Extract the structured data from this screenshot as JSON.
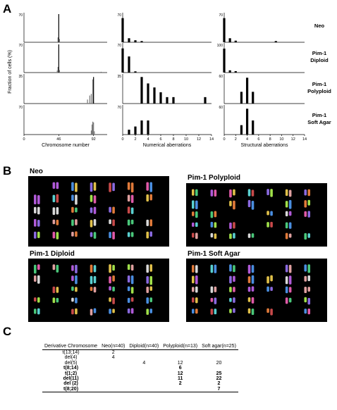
{
  "panel_a": {
    "letter": "A",
    "ylabel": "Fraction of cells (%)",
    "row_labels": [
      [
        "Neo"
      ],
      [
        "Pim-1",
        "Diploid"
      ],
      [
        "Pim-1",
        "Polyploid"
      ],
      [
        "Pim-1",
        "Soft Agar"
      ]
    ]
  },
  "chart_data": [
    {
      "type": "bar",
      "xlabel": "Chromosome number",
      "xticks": [
        0,
        46,
        92
      ],
      "xlim": [
        0,
        110
      ],
      "rows": [
        {
          "name": "Neo",
          "ytick": "70",
          "ymax": 70,
          "bars": [
            {
              "x": 45,
              "y": 12
            },
            {
              "x": 46,
              "y": 70
            },
            {
              "x": 47,
              "y": 8
            }
          ]
        },
        {
          "name": "Pim-1 Diploid",
          "ytick": "70",
          "ymax": 70,
          "bars": [
            {
              "x": 44,
              "y": 5
            },
            {
              "x": 45,
              "y": 14
            },
            {
              "x": 46,
              "y": 70
            },
            {
              "x": 47,
              "y": 6
            },
            {
              "x": 102,
              "y": 2
            }
          ]
        },
        {
          "name": "Pim-1 Polyploid",
          "ytick": "35",
          "ymax": 35,
          "bars": [
            {
              "x": 84,
              "y": 5
            },
            {
              "x": 87,
              "y": 10
            },
            {
              "x": 89,
              "y": 12
            },
            {
              "x": 91,
              "y": 30
            },
            {
              "x": 92,
              "y": 33
            }
          ]
        },
        {
          "name": "Pim-1 Soft Agar",
          "ytick": "70",
          "ymax": 70,
          "bars": [
            {
              "x": 89,
              "y": 10
            },
            {
              "x": 90,
              "y": 25
            },
            {
              "x": 91,
              "y": 32
            },
            {
              "x": 92,
              "y": 30
            },
            {
              "x": 93,
              "y": 8
            }
          ]
        }
      ]
    },
    {
      "type": "bar",
      "xlabel": "Numerical aberrations",
      "xticks": [
        0,
        2,
        4,
        6,
        8,
        10,
        12,
        14
      ],
      "xlim": [
        0,
        14
      ],
      "rows": [
        {
          "name": "Neo",
          "ytick": "70",
          "ymax": 70,
          "bars": [
            {
              "x": 0,
              "y": 60
            },
            {
              "x": 1,
              "y": 10
            },
            {
              "x": 2,
              "y": 5
            },
            {
              "x": 3,
              "y": 3
            }
          ]
        },
        {
          "name": "Pim-1 Diploid",
          "ytick": "70",
          "ymax": 70,
          "bars": [
            {
              "x": 0,
              "y": 60
            },
            {
              "x": 1,
              "y": 40
            },
            {
              "x": 2,
              "y": 3
            }
          ]
        },
        {
          "name": "Pim-1 Polyploid",
          "ytick": "35",
          "ymax": 35,
          "bars": [
            {
              "x": 3,
              "y": 33
            },
            {
              "x": 4,
              "y": 25
            },
            {
              "x": 5,
              "y": 20
            },
            {
              "x": 6,
              "y": 14
            },
            {
              "x": 7,
              "y": 8
            },
            {
              "x": 8,
              "y": 8
            },
            {
              "x": 13,
              "y": 8
            }
          ]
        },
        {
          "name": "Pim-1 Soft Agar",
          "ytick": "70",
          "ymax": 70,
          "bars": [
            {
              "x": 1,
              "y": 12
            },
            {
              "x": 2,
              "y": 20
            },
            {
              "x": 3,
              "y": 35
            },
            {
              "x": 4,
              "y": 35
            }
          ]
        }
      ]
    },
    {
      "type": "bar",
      "xlabel": "Structural aberrations",
      "xticks": [
        0,
        2,
        4,
        6,
        8,
        10,
        12,
        14
      ],
      "xlim": [
        0,
        14
      ],
      "rows": [
        {
          "name": "Neo",
          "ytick": "70",
          "ymax": 70,
          "bars": [
            {
              "x": 0,
              "y": 60
            },
            {
              "x": 1,
              "y": 10
            },
            {
              "x": 2,
              "y": 4
            },
            {
              "x": 9,
              "y": 3
            }
          ]
        },
        {
          "name": "Pim-1 Diploid",
          "ytick": "100",
          "ymax": 100,
          "bars": [
            {
              "x": 0,
              "y": 85
            },
            {
              "x": 1,
              "y": 8
            },
            {
              "x": 2,
              "y": 5
            }
          ]
        },
        {
          "name": "Pim-1 Polyploid",
          "ytick": "60",
          "ymax": 60,
          "bars": [
            {
              "x": 3,
              "y": 25
            },
            {
              "x": 4,
              "y": 55
            },
            {
              "x": 5,
              "y": 25
            }
          ]
        },
        {
          "name": "Pim-1 Soft Agar",
          "ytick": "60",
          "ymax": 60,
          "bars": [
            {
              "x": 3,
              "y": 20
            },
            {
              "x": 4,
              "y": 55
            },
            {
              "x": 5,
              "y": 30
            }
          ]
        }
      ]
    }
  ],
  "panel_b": {
    "letter": "B",
    "karyotypes": [
      {
        "title": "Neo"
      },
      {
        "title": "Pim-1 Polyploid"
      },
      {
        "title": "Pim-1 Diploid"
      },
      {
        "title": "Pim-1 Soft Agar"
      }
    ]
  },
  "panel_c": {
    "letter": "C",
    "headers": [
      "Derivative Chromosome",
      "Neo(n=40)",
      "Diploid(n=40)",
      "Polyploid(n=13)",
      "Soft agar(n=25)"
    ],
    "rows": [
      {
        "cells": [
          "t(13;14)",
          "2",
          "",
          "",
          ""
        ],
        "bold": false
      },
      {
        "cells": [
          "del(4)",
          "4",
          "",
          "",
          ""
        ],
        "bold": false
      },
      {
        "cells": [
          "del(5)",
          "",
          "4",
          "12",
          "20"
        ],
        "bold": false
      },
      {
        "cells": [
          "t(8;14)",
          "",
          "",
          "6",
          ""
        ],
        "bold": true
      },
      {
        "cells": [
          "t(1;2)",
          "",
          "",
          "12",
          "25"
        ],
        "bold": true
      },
      {
        "cells": [
          "del(11)",
          "",
          "",
          "11",
          "22"
        ],
        "bold": true
      },
      {
        "cells": [
          "del (2)",
          "",
          "",
          "2",
          "2"
        ],
        "bold": true
      },
      {
        "cells": [
          "t(8;20)",
          "",
          "",
          "",
          "7"
        ],
        "bold": true
      }
    ]
  }
}
